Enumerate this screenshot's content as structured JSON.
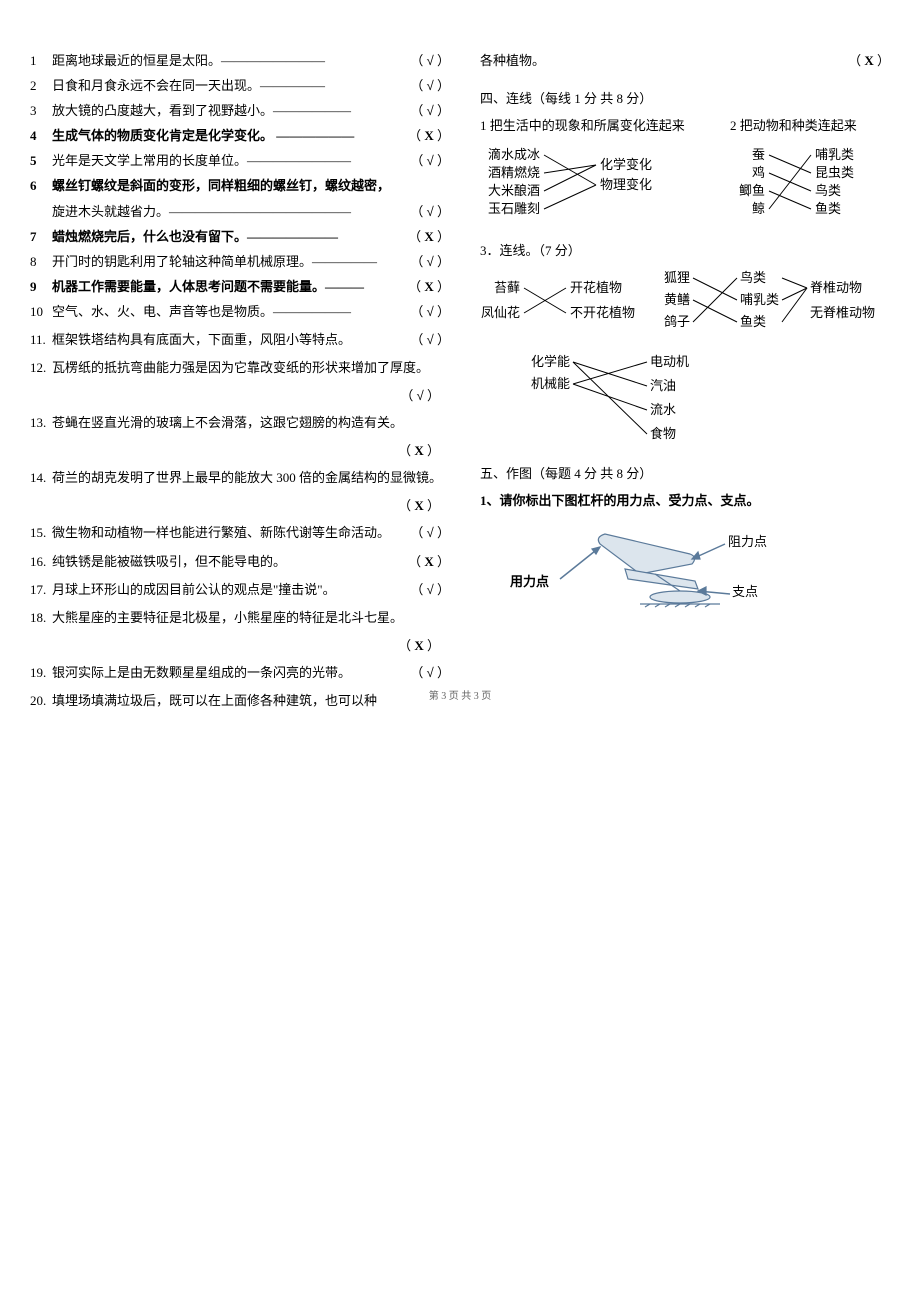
{
  "tf_items": [
    {
      "num": "1",
      "text": "距离地球最近的恒星是太阳。————————",
      "ans": "√",
      "bold": false
    },
    {
      "num": "2",
      "text": "日食和月食永远不会在同一天出现。—————",
      "ans": "√",
      "bold": false
    },
    {
      "num": "3",
      "text": "放大镜的凸度越大，看到了视野越小。——————",
      "ans": "√",
      "bold": false
    },
    {
      "num": "4",
      "text": "生成气体的物质变化肯定是化学变化。 ——————",
      "ans": "X",
      "bold": true
    },
    {
      "num": "5",
      "text": "光年是天文学上常用的长度单位。————————",
      "ans": "√",
      "bold": false,
      "numbold": true
    },
    {
      "num": "6",
      "text": "螺丝钉螺纹是斜面的变形，同样粗细的螺丝钉，螺纹越密，",
      "ans": "",
      "bold": true
    },
    {
      "num": "",
      "text": "旋进木头就越省力。——————————————",
      "ans": "√",
      "bold": false
    },
    {
      "num": "7",
      "text": "蜡烛燃烧完后，什么也没有留下。——————— ",
      "ans": "X",
      "bold": true
    },
    {
      "num": "8",
      "text": "开门时的钥匙利用了轮轴这种简单机械原理。—————",
      "ans": "√",
      "bold": false
    },
    {
      "num": "9",
      "text": " 机器工作需要能量，人体思考问题不需要能量。——— ",
      "ans": "X",
      "bold": true
    },
    {
      "num": "10",
      "text": " 空气、水、火、电、声音等也是物质。—————— ",
      "ans": "√",
      "bold": false
    }
  ],
  "tf_items2": [
    {
      "num": "11.",
      "text": "框架铁塔结构具有底面大，下面重，风阻小等特点。",
      "ans": "√",
      "bold": false
    },
    {
      "num": "12.",
      "text": " 瓦楞纸的抵抗弯曲能力强是因为它靠改变纸的形状来增加了厚度。",
      "ans": "√",
      "bold": false,
      "wrap": true
    },
    {
      "num": "13.",
      "text": " 苍蝇在竖直光滑的玻璃上不会滑落，这跟它翅膀的构造有关。",
      "ans": "X",
      "bold": true,
      "wrap": true
    },
    {
      "num": "14.",
      "text": "荷兰的胡克发明了世界上最早的能放大 300 倍的金属结构的显微镜。",
      "ans": "X",
      "bold": true,
      "wrap": true
    },
    {
      "num": "15.",
      "text": "微生物和动植物一样也能进行繁殖、新陈代谢等生命活动。",
      "ans": "√",
      "bold": false
    },
    {
      "num": "16.",
      "text": " 纯铁锈是能被磁铁吸引，但不能导电的。",
      "ans": "X",
      "bold": true
    },
    {
      "num": "17.",
      "text": " 月球上环形山的成因目前公认的观点是\"撞击说\"。",
      "ans": "√",
      "bold": false
    },
    {
      "num": "18.",
      "text": " 大熊星座的主要特征是北极星，小熊星座的特征是北斗七星。",
      "ans": "X",
      "bold": true,
      "wrap": true
    },
    {
      "num": "19.",
      "text": " 银河实际上是由无数颗星星组成的一条闪亮的光带。",
      "ans": "√",
      "bold": false
    },
    {
      "num": "20.",
      "text": "填埋场填满垃圾后，既可以在上面修各种建筑，也可以种",
      "ans": "",
      "bold": false
    }
  ],
  "right_top": {
    "text": "各种植物。",
    "ans": "X"
  },
  "section4_title": "四、连线（每线 1 分 共 8 分）",
  "section4_sub1": "1 把生活中的现象和所属变化连起来",
  "section4_sub2": "2  把动物和种类连起来",
  "match1": {
    "left": [
      "滴水成冰",
      "酒精燃烧",
      "大米酿酒",
      "玉石雕刻"
    ],
    "right": [
      "化学变化",
      "物理变化"
    ],
    "lines": [
      [
        0,
        1
      ],
      [
        1,
        0
      ],
      [
        2,
        0
      ],
      [
        3,
        1
      ]
    ],
    "colors": {
      "text": "#000000",
      "line": "#000000"
    }
  },
  "match2": {
    "left": [
      "蚕",
      "鸡",
      "鲫鱼",
      "鲸"
    ],
    "right": [
      "哺乳类",
      "昆虫类",
      "鸟类",
      "鱼类"
    ],
    "lines": [
      [
        0,
        1
      ],
      [
        1,
        2
      ],
      [
        2,
        3
      ],
      [
        3,
        0
      ]
    ],
    "colors": {
      "text": "#000000",
      "line": "#000000"
    }
  },
  "section3_title": "3．连线。（7 分）",
  "match3": {
    "left": [
      "苔藓",
      "凤仙花"
    ],
    "right": [
      "开花植物",
      "不开花植物"
    ],
    "lines": [
      [
        0,
        1
      ],
      [
        1,
        0
      ]
    ],
    "colors": {
      "text": "#000000",
      "line": "#000000"
    }
  },
  "match4": {
    "left": [
      "狐狸",
      "黄鳝",
      "鸽子"
    ],
    "mid": [
      "鸟类",
      "哺乳类",
      "鱼类"
    ],
    "right": [
      "脊椎动物",
      "无脊椎动物"
    ],
    "lines_lm": [
      [
        0,
        1
      ],
      [
        1,
        2
      ],
      [
        2,
        0
      ]
    ],
    "lines_mr": [
      [
        0,
        0
      ],
      [
        1,
        0
      ],
      [
        2,
        0
      ]
    ],
    "colors": {
      "text": "#000000",
      "line": "#000000"
    }
  },
  "match5": {
    "left": [
      "化学能",
      "机械能"
    ],
    "right": [
      "电动机",
      "汽油",
      "流水",
      "食物"
    ],
    "lines": [
      [
        0,
        1
      ],
      [
        0,
        3
      ],
      [
        1,
        0
      ],
      [
        1,
        2
      ]
    ],
    "colors": {
      "text": "#000000",
      "line": "#000000"
    }
  },
  "section5_title": "五、作图（每题 4 分 共 8 分）",
  "section5_sub1": "1、请你标出下图杠杆的用力点、受力点、支点。",
  "lever": {
    "labels": {
      "force": "用力点",
      "load": "阻力点",
      "fulcrum": "支点"
    },
    "color": "#5b7a9a"
  },
  "footer": "第 3 页 共 3 页"
}
